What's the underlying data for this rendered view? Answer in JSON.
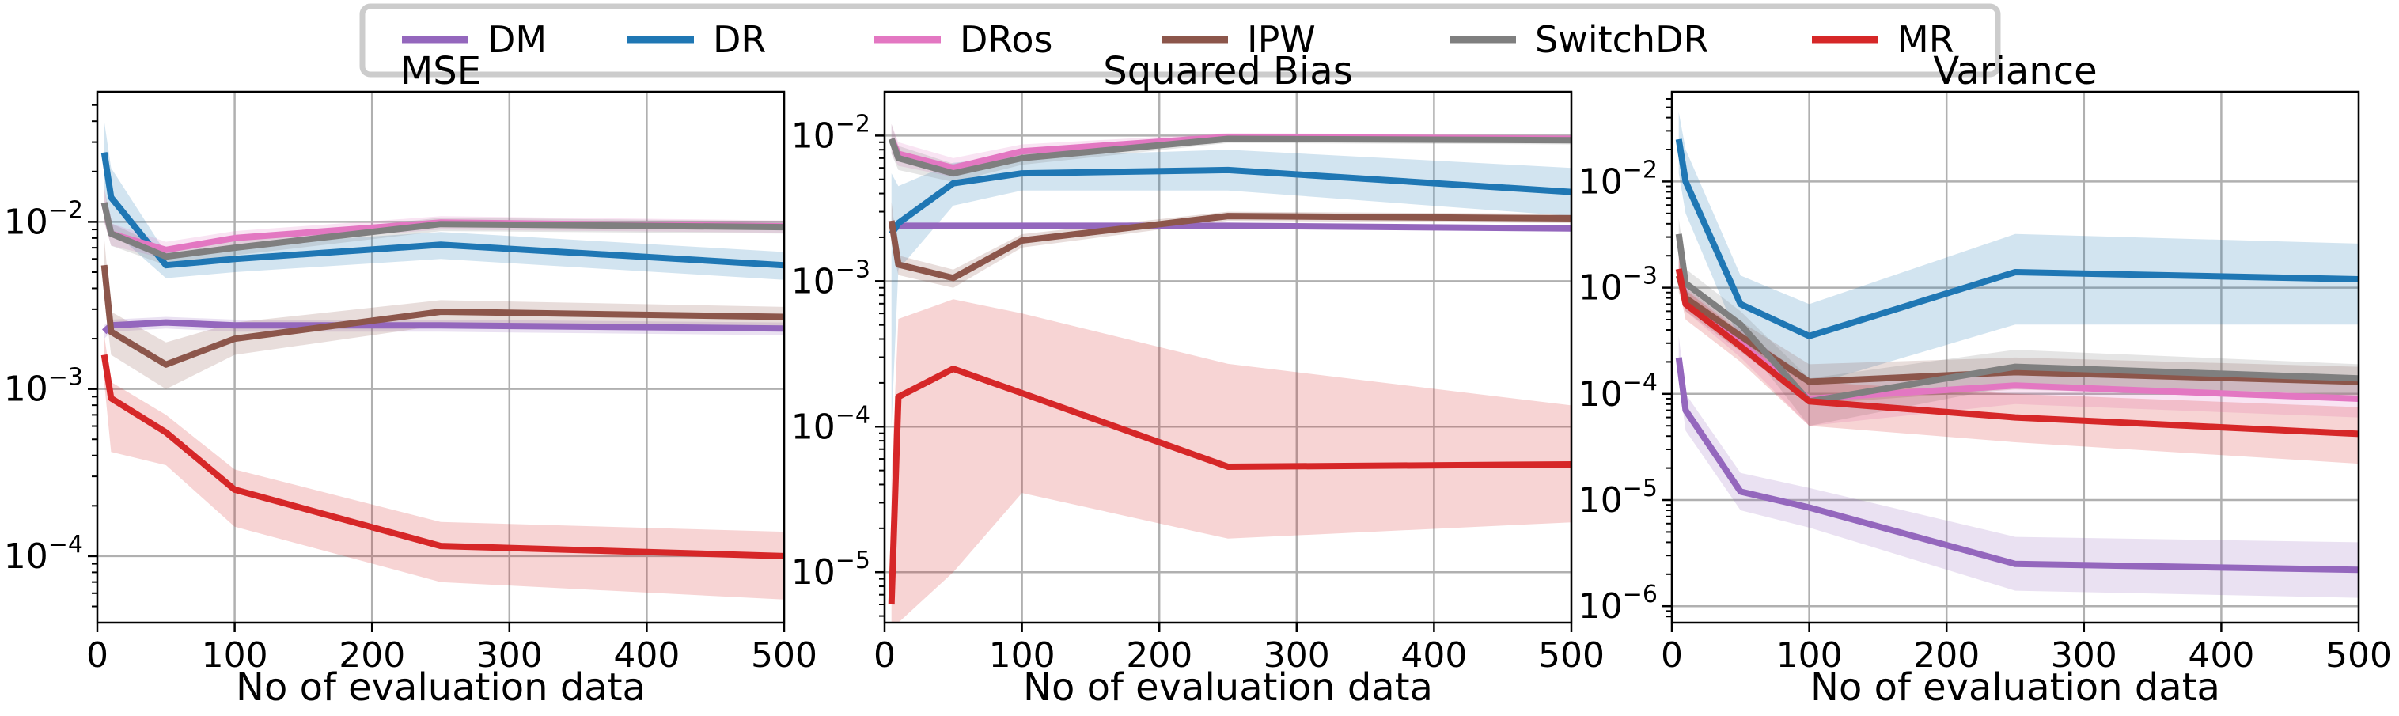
{
  "legend": {
    "placement": "top-center",
    "entries": [
      {
        "name": "DM",
        "color": "#9467bd"
      },
      {
        "name": "DR",
        "color": "#1f77b4"
      },
      {
        "name": "DRos",
        "color": "#e377c2"
      },
      {
        "name": "IPW",
        "color": "#8c564b"
      },
      {
        "name": "SwitchDR",
        "color": "#7f7f7f"
      },
      {
        "name": "MR",
        "color": "#d62728"
      }
    ]
  },
  "chart_data": [
    {
      "type": "line",
      "title": "MSE",
      "xlabel": "No of evaluation data",
      "ylabel": "",
      "yscale": "log",
      "xlim": [
        0,
        500
      ],
      "ylim": [
        4e-05,
        0.06
      ],
      "xticks": [
        0,
        100,
        200,
        300,
        400,
        500
      ],
      "yticks": [
        0.0001,
        0.001,
        0.01
      ],
      "ytick_labels": [
        {
          "base": "10",
          "exp": "−4"
        },
        {
          "base": "10",
          "exp": "−3"
        },
        {
          "base": "10",
          "exp": "−2"
        }
      ],
      "grid": true,
      "x": [
        5,
        10,
        50,
        100,
        250,
        500
      ],
      "series": [
        {
          "name": "DM",
          "values": [
            0.0022,
            0.0024,
            0.0025,
            0.0024,
            0.0024,
            0.0023
          ],
          "lower": [
            0.002,
            0.0022,
            0.0023,
            0.0022,
            0.0022,
            0.0021
          ],
          "upper": [
            0.0024,
            0.0026,
            0.0027,
            0.0026,
            0.0026,
            0.0025
          ]
        },
        {
          "name": "DR",
          "values": [
            0.026,
            0.014,
            0.0055,
            0.006,
            0.0073,
            0.0055
          ],
          "lower": [
            0.016,
            0.009,
            0.0046,
            0.005,
            0.006,
            0.0045
          ],
          "upper": [
            0.04,
            0.021,
            0.0065,
            0.0072,
            0.0087,
            0.0066
          ]
        },
        {
          "name": "DRos",
          "values": [
            0.013,
            0.0085,
            0.0068,
            0.008,
            0.0099,
            0.0094
          ],
          "lower": [
            0.01,
            0.0072,
            0.006,
            0.0072,
            0.009,
            0.0086
          ],
          "upper": [
            0.016,
            0.0098,
            0.0076,
            0.0088,
            0.0108,
            0.0102
          ]
        },
        {
          "name": "IPW",
          "values": [
            0.0055,
            0.0022,
            0.0014,
            0.002,
            0.0029,
            0.0027
          ],
          "lower": [
            0.0035,
            0.0016,
            0.001,
            0.0016,
            0.0024,
            0.0023
          ],
          "upper": [
            0.008,
            0.0029,
            0.0019,
            0.0025,
            0.0034,
            0.0031
          ]
        },
        {
          "name": "SwitchDR",
          "values": [
            0.013,
            0.0085,
            0.0062,
            0.007,
            0.0097,
            0.0093
          ],
          "lower": [
            0.01,
            0.0072,
            0.0055,
            0.0063,
            0.0088,
            0.0085
          ],
          "upper": [
            0.016,
            0.0098,
            0.0069,
            0.0078,
            0.0106,
            0.0101
          ]
        },
        {
          "name": "MR",
          "values": [
            0.0016,
            0.00088,
            0.00055,
            0.00025,
            0.000115,
            0.0001
          ],
          "lower": [
            0.0011,
            0.00042,
            0.00035,
            0.00015,
            7e-05,
            5.5e-05
          ],
          "upper": [
            0.0021,
            0.0011,
            0.0007,
            0.00033,
            0.00016,
            0.00014
          ]
        }
      ]
    },
    {
      "type": "line",
      "title": "Squared Bias",
      "xlabel": "No of evaluation data",
      "ylabel": "",
      "yscale": "log",
      "xlim": [
        0,
        500
      ],
      "ylim": [
        4.5e-06,
        0.02
      ],
      "xticks": [
        0,
        100,
        200,
        300,
        400,
        500
      ],
      "yticks": [
        1e-05,
        0.0001,
        0.001,
        0.01
      ],
      "ytick_labels": [
        {
          "base": "10",
          "exp": "−5"
        },
        {
          "base": "10",
          "exp": "−4"
        },
        {
          "base": "10",
          "exp": "−3"
        },
        {
          "base": "10",
          "exp": "−2"
        }
      ],
      "grid": true,
      "x": [
        5,
        10,
        50,
        100,
        250,
        500
      ],
      "series": [
        {
          "name": "DM",
          "values": [
            0.0022,
            0.0024,
            0.0024,
            0.0024,
            0.0024,
            0.0023
          ],
          "lower": [
            0.0021,
            0.0023,
            0.0023,
            0.0023,
            0.0023,
            0.0022
          ],
          "upper": [
            0.0023,
            0.0025,
            0.0025,
            0.0025,
            0.0025,
            0.0024
          ]
        },
        {
          "name": "DR",
          "values": [
            0.0021,
            0.0025,
            0.0047,
            0.0055,
            0.0058,
            0.0041
          ],
          "lower": [
            0.0001,
            0.0012,
            0.0033,
            0.0042,
            0.0042,
            0.0028
          ],
          "upper": [
            0.0055,
            0.0045,
            0.0065,
            0.0072,
            0.008,
            0.006
          ]
        },
        {
          "name": "DRos",
          "values": [
            0.0095,
            0.0075,
            0.006,
            0.0078,
            0.0098,
            0.0095
          ],
          "lower": [
            0.0075,
            0.0062,
            0.0052,
            0.007,
            0.0092,
            0.0089
          ],
          "upper": [
            0.012,
            0.009,
            0.007,
            0.0087,
            0.0104,
            0.0101
          ]
        },
        {
          "name": "IPW",
          "values": [
            0.0026,
            0.0013,
            0.00105,
            0.0019,
            0.0028,
            0.0027
          ],
          "lower": [
            0.0018,
            0.0011,
            0.0009,
            0.0017,
            0.0026,
            0.0025
          ],
          "upper": [
            0.0035,
            0.0015,
            0.0012,
            0.0021,
            0.003,
            0.0029
          ]
        },
        {
          "name": "SwitchDR",
          "values": [
            0.0095,
            0.007,
            0.0055,
            0.007,
            0.0095,
            0.0093
          ],
          "lower": [
            0.0075,
            0.0058,
            0.0048,
            0.0063,
            0.0089,
            0.0087
          ],
          "upper": [
            0.012,
            0.0085,
            0.0064,
            0.0078,
            0.0101,
            0.0099
          ]
        },
        {
          "name": "MR",
          "values": [
            6e-06,
            0.00016,
            0.00025,
            0.00017,
            5.3e-05,
            5.5e-05
          ],
          "lower": [
            4.5e-06,
            4.5e-06,
            1e-05,
            3.5e-05,
            1.7e-05,
            2.2e-05
          ],
          "upper": [
            4.5e-05,
            0.00055,
            0.00075,
            0.0006,
            0.00027,
            0.00014
          ]
        }
      ]
    },
    {
      "type": "line",
      "title": "Variance",
      "xlabel": "No of evaluation data",
      "ylabel": "",
      "yscale": "log",
      "xlim": [
        0,
        500
      ],
      "ylim": [
        7e-07,
        0.07
      ],
      "xticks": [
        0,
        100,
        200,
        300,
        400,
        500
      ],
      "yticks": [
        1e-06,
        1e-05,
        0.0001,
        0.001,
        0.01
      ],
      "ytick_labels": [
        {
          "base": "10",
          "exp": "−6"
        },
        {
          "base": "10",
          "exp": "−5"
        },
        {
          "base": "10",
          "exp": "−4"
        },
        {
          "base": "10",
          "exp": "−3"
        },
        {
          "base": "10",
          "exp": "−2"
        }
      ],
      "grid": true,
      "x": [
        5,
        10,
        50,
        100,
        250,
        500
      ],
      "series": [
        {
          "name": "DM",
          "values": [
            0.00022,
            7e-05,
            1.2e-05,
            8.5e-06,
            2.5e-06,
            2.2e-06
          ],
          "lower": [
            0.00014,
            4.5e-05,
            8e-06,
            5.5e-06,
            1.4e-06,
            1.2e-06
          ],
          "upper": [
            0.00035,
            0.0001,
            1.8e-05,
            1.3e-05,
            4.5e-06,
            4e-06
          ]
        },
        {
          "name": "DR",
          "values": [
            0.025,
            0.01,
            0.0007,
            0.00035,
            0.0014,
            0.0012
          ],
          "lower": [
            0.012,
            0.005,
            0.0003,
            0.00012,
            0.00045,
            0.00045
          ],
          "upper": [
            0.045,
            0.02,
            0.0013,
            0.0007,
            0.0032,
            0.0026
          ]
        },
        {
          "name": "DRos",
          "values": [
            0.0015,
            0.0008,
            0.0003,
            9e-05,
            0.00012,
            9e-05
          ],
          "lower": [
            0.0011,
            0.0006,
            0.00022,
            5e-05,
            8e-05,
            6e-05
          ],
          "upper": [
            0.002,
            0.001,
            0.0004,
            0.00014,
            0.00017,
            0.00013
          ]
        },
        {
          "name": "IPW",
          "values": [
            0.0013,
            0.0008,
            0.00035,
            0.00013,
            0.00016,
            0.00013
          ],
          "lower": [
            0.0009,
            0.0006,
            0.00025,
            8e-05,
            0.00011,
            9e-05
          ],
          "upper": [
            0.0018,
            0.001,
            0.00048,
            0.00019,
            0.00022,
            0.00018
          ]
        },
        {
          "name": "SwitchDR",
          "values": [
            0.0032,
            0.0011,
            0.00045,
            8.5e-05,
            0.00018,
            0.00014
          ],
          "lower": [
            0.0022,
            0.00082,
            0.00033,
            5e-05,
            0.00012,
            0.0001
          ],
          "upper": [
            0.0045,
            0.0015,
            0.0006,
            0.00014,
            0.00026,
            0.00019
          ]
        },
        {
          "name": "MR",
          "values": [
            0.0015,
            0.0007,
            0.00028,
            8.5e-05,
            6e-05,
            4.2e-05
          ],
          "lower": [
            0.001,
            0.0005,
            0.0002,
            5e-05,
            3.5e-05,
            2.2e-05
          ],
          "upper": [
            0.0021,
            0.00095,
            0.00038,
            0.00013,
            0.0001,
            7.5e-05
          ]
        }
      ]
    }
  ]
}
